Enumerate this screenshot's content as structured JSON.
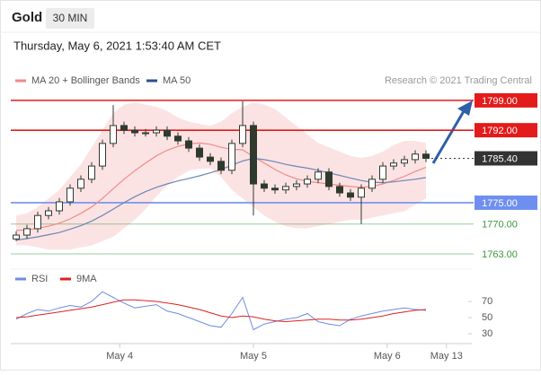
{
  "header": {
    "title": "Gold",
    "timeframe": "30 MIN",
    "datetime": "Thursday, May 6, 2021 1:53:40 AM CET"
  },
  "chart_data": [
    {
      "type": "candlestick",
      "source": "Research © 2021 Trading Central",
      "categories": [
        null,
        null,
        null,
        null,
        null,
        null,
        null,
        null,
        null,
        null,
        null,
        null,
        null,
        null,
        null,
        null,
        null,
        null,
        null,
        null,
        null,
        null,
        null,
        null,
        null,
        null,
        null,
        null,
        null,
        null,
        null,
        null,
        null,
        null,
        null,
        null,
        null,
        null,
        null
      ],
      "xlim": [
        -0.5,
        42.25
      ],
      "ylim": [
        1761.1,
        1801.5
      ],
      "candle_color": "#2f3a2f",
      "open": [
        1766.5,
        1767.4,
        1768.9,
        1772,
        1773.1,
        1775.2,
        1778.4,
        1780.5,
        1783.6,
        1788.9,
        1793.1,
        1792,
        1791.4,
        1791.4,
        1792,
        1790.6,
        1789.5,
        1787.8,
        1785.7,
        1784.7,
        1782.6,
        1788.9,
        1793.1,
        1779.4,
        1778.4,
        1778,
        1778.8,
        1779.4,
        1780.5,
        1782.2,
        1778.8,
        1777.3,
        1776.3,
        1778.4,
        1780.5,
        1783.6,
        1784.3,
        1785.1,
        1786.4
      ],
      "high": [
        1768.3,
        1769.8,
        1772.9,
        1774,
        1776.1,
        1779.3,
        1781.4,
        1784.5,
        1789.8,
        1797.9,
        1794,
        1792.9,
        1792.3,
        1792.9,
        1792.9,
        1791.5,
        1790.4,
        1788.7,
        1786.6,
        1785.6,
        1789.8,
        1798.8,
        1794,
        1780.3,
        1779.3,
        1779.7,
        1780.3,
        1781.4,
        1783.1,
        1783.1,
        1779.7,
        1778.2,
        1779.3,
        1781.4,
        1784.5,
        1785.2,
        1786,
        1787.3,
        1787.3
      ],
      "low": [
        1766,
        1766.5,
        1768,
        1771.1,
        1772.2,
        1774.3,
        1777.5,
        1779.6,
        1782.7,
        1788,
        1791.1,
        1790.5,
        1790.5,
        1790.5,
        1789.7,
        1788.6,
        1786.9,
        1784.8,
        1783.8,
        1781.7,
        1781.7,
        1788,
        1772,
        1777.5,
        1777.1,
        1777.1,
        1777.9,
        1778.5,
        1779.6,
        1777.9,
        1776.4,
        1775.4,
        1770,
        1777.5,
        1779.6,
        1782.7,
        1783.4,
        1784.2,
        1784.5
      ],
      "close": [
        1767.4,
        1768.9,
        1772,
        1773.1,
        1775.2,
        1778.4,
        1780.5,
        1783.6,
        1788.9,
        1793.1,
        1792,
        1791.4,
        1791.4,
        1792,
        1790.6,
        1789.5,
        1787.8,
        1785.7,
        1784.7,
        1782.6,
        1788.9,
        1793.1,
        1779.4,
        1778.4,
        1778,
        1778.8,
        1779.4,
        1780.5,
        1782.2,
        1778.8,
        1777.3,
        1776.3,
        1778.4,
        1780.5,
        1783.6,
        1784.3,
        1785.1,
        1786.4,
        1785.4
      ],
      "series": [
        {
          "name": "MA 20 + Bollinger Bands",
          "color": "#f08a8a",
          "band_color": "#fbdada",
          "values": [
            1768.5,
            1768.6,
            1769,
            1769.5,
            1770.2,
            1771.2,
            1772.5,
            1774,
            1776,
            1778.3,
            1780.5,
            1782.5,
            1784.3,
            1786,
            1787.3,
            1788.2,
            1788.8,
            1789,
            1788.7,
            1788,
            1787.5,
            1787.4,
            1785.8,
            1784.3,
            1782.8,
            1781.5,
            1780.6,
            1780,
            1779.7,
            1779.4,
            1779.1,
            1778.8,
            1778.6,
            1778.8,
            1779.4,
            1780.2,
            1781.2,
            1782.3,
            1783.3
          ],
          "upper": [
            1772,
            1772.5,
            1774,
            1776,
            1778,
            1781,
            1784,
            1788,
            1792,
            1796,
            1798,
            1798.5,
            1798,
            1797.5,
            1796.5,
            1795,
            1794,
            1793.5,
            1793,
            1794,
            1796,
            1797.5,
            1798.5,
            1798,
            1797,
            1795,
            1793,
            1791,
            1789,
            1788,
            1787,
            1786,
            1785.5,
            1786,
            1787,
            1788.5,
            1789.5,
            1789.5,
            1789
          ],
          "lower": [
            1765,
            1765,
            1764.5,
            1764,
            1764,
            1764,
            1764.5,
            1765,
            1766,
            1767,
            1769,
            1771,
            1773.5,
            1776.5,
            1779,
            1781,
            1782.5,
            1783,
            1783,
            1781,
            1778,
            1776,
            1774,
            1772,
            1770.5,
            1769.5,
            1769,
            1769,
            1769.5,
            1770,
            1770.5,
            1771,
            1771,
            1771.5,
            1772,
            1772.5,
            1773,
            1774.5,
            1776
          ]
        },
        {
          "name": "MA 50",
          "color": "#6d86b8",
          "values": [
            1766.2,
            1766.6,
            1767,
            1767.5,
            1768,
            1768.8,
            1769.6,
            1770.7,
            1772,
            1773.5,
            1775,
            1776.4,
            1777.6,
            1778.6,
            1779.4,
            1780.1,
            1780.7,
            1781.3,
            1782,
            1782.8,
            1783.8,
            1784.8,
            1785.4,
            1785.1,
            1784.6,
            1784,
            1783.5,
            1783.1,
            1782.6,
            1782,
            1781.4,
            1780.8,
            1780.2,
            1779.8,
            1779.7,
            1779.9,
            1780.2,
            1780.5,
            1780.9
          ]
        }
      ],
      "legend_colors": [
        "#f08a8a",
        "#2c4f8c"
      ],
      "levels": [
        {
          "value": 1799,
          "label": "1799.00",
          "color": "#e31b1b",
          "boxed": true,
          "dotted": false
        },
        {
          "value": 1792,
          "label": "1792.00",
          "color": "#e31b1b",
          "boxed": true,
          "dotted": false
        },
        {
          "value": 1785.4,
          "label": "1785.40",
          "color": "#333333",
          "boxed": true,
          "dotted": true
        },
        {
          "value": 1775,
          "label": "1775.00",
          "color": "#6f8ff0",
          "boxed": true,
          "dotted": false
        },
        {
          "value": 1770,
          "label": "1770.00",
          "color": "#3a9a3a",
          "boxed": false,
          "dotted": false
        },
        {
          "value": 1763,
          "label": "1763.00",
          "color": "#3a9a3a",
          "boxed": false,
          "dotted": false
        }
      ]
    },
    {
      "type": "line",
      "categories": [
        null,
        null,
        null,
        null,
        null,
        null,
        null,
        null,
        null,
        null,
        null,
        null,
        null,
        null,
        null,
        null,
        null,
        null,
        null,
        null,
        null,
        null,
        null,
        null,
        null,
        null,
        null,
        null,
        null,
        null,
        null,
        null,
        null,
        null,
        null,
        null,
        null,
        null,
        null
      ],
      "xlim": [
        -0.5,
        42.25
      ],
      "xticks": [
        {
          "value": 9.6,
          "label": "May 4"
        },
        {
          "value": 22,
          "label": "May 5"
        },
        {
          "value": 34.4,
          "label": "May 6"
        },
        {
          "value": 39.9,
          "label": "May 13"
        }
      ],
      "ylim": [
        15.6,
        87.8
      ],
      "yticks": [
        30,
        50,
        70
      ],
      "series": [
        {
          "name": "RSI",
          "color": "#6b8de3",
          "values": [
            48,
            55,
            60,
            58,
            62,
            65,
            63,
            70,
            82,
            75,
            68,
            62,
            64,
            66,
            58,
            55,
            50,
            45,
            40,
            38,
            55,
            75,
            35,
            42,
            45,
            48,
            50,
            55,
            45,
            42,
            40,
            48,
            52,
            55,
            58,
            60,
            62,
            60,
            59
          ]
        },
        {
          "name": "9MA",
          "color": "#e02020",
          "values": [
            50,
            51,
            53,
            55,
            57,
            59,
            61,
            63,
            66,
            69,
            72,
            72,
            71,
            70,
            68,
            66,
            63,
            60,
            56,
            52,
            50,
            52,
            51,
            48,
            46,
            45,
            46,
            47,
            48,
            48,
            47,
            47,
            48,
            50,
            52,
            55,
            57,
            59,
            60
          ]
        }
      ]
    }
  ]
}
